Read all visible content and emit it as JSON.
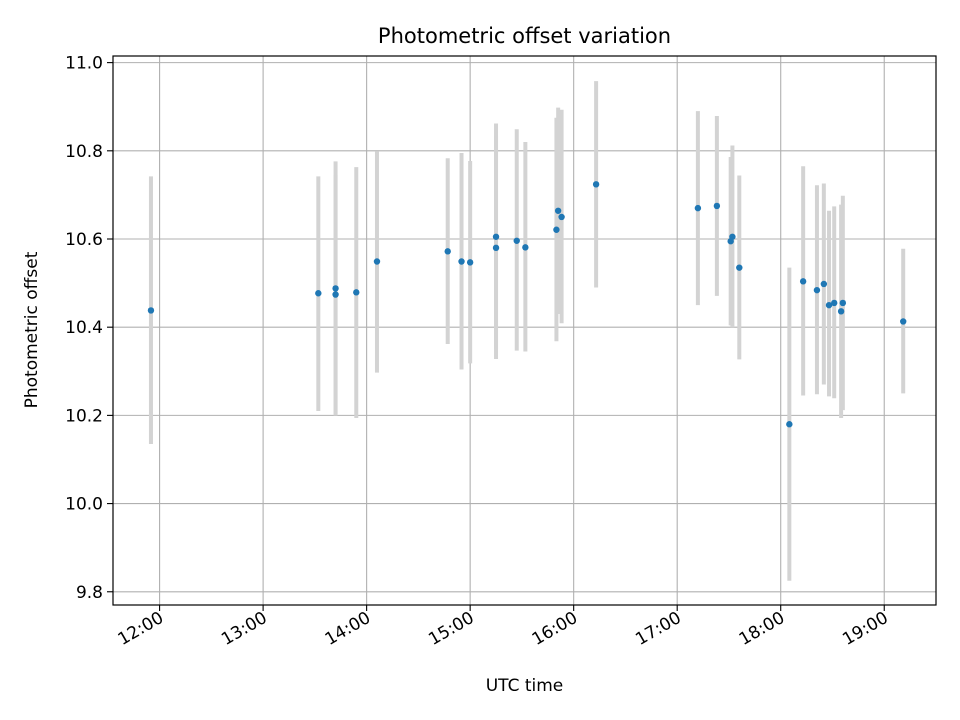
{
  "chart_data": {
    "type": "scatter",
    "title": "Photometric offset variation",
    "xlabel": "UTC time",
    "ylabel": "Photometric offset",
    "x_ticks": [
      "12:00",
      "13:00",
      "14:00",
      "15:00",
      "16:00",
      "17:00",
      "18:00",
      "19:00"
    ],
    "y_ticks": [
      "9.8",
      "10.0",
      "10.2",
      "10.4",
      "10.6",
      "10.8",
      "11.0"
    ],
    "xlim": [
      "11:33",
      "19:30"
    ],
    "ylim": [
      9.77,
      11.015
    ],
    "grid": true,
    "point_color": "#1f77b4",
    "errorbar_color": "#d3d3d3",
    "points": [
      {
        "time": "11:55",
        "y": 10.438,
        "err_low": 10.135,
        "err_high": 10.742
      },
      {
        "time": "13:32",
        "y": 10.477,
        "err_low": 10.21,
        "err_high": 10.742
      },
      {
        "time": "13:42",
        "y": 10.488,
        "err_low": 10.2,
        "err_high": 10.776
      },
      {
        "time": "13:42",
        "y": 10.474,
        "err_low": 10.203,
        "err_high": 10.745
      },
      {
        "time": "13:54",
        "y": 10.479,
        "err_low": 10.194,
        "err_high": 10.763
      },
      {
        "time": "14:06",
        "y": 10.549,
        "err_low": 10.297,
        "err_high": 10.799
      },
      {
        "time": "14:47",
        "y": 10.572,
        "err_low": 10.362,
        "err_high": 10.783
      },
      {
        "time": "14:55",
        "y": 10.549,
        "err_low": 10.304,
        "err_high": 10.795
      },
      {
        "time": "15:00",
        "y": 10.547,
        "err_low": 10.318,
        "err_high": 10.777
      },
      {
        "time": "15:15",
        "y": 10.605,
        "err_low": 10.35,
        "err_high": 10.862
      },
      {
        "time": "15:15",
        "y": 10.58,
        "err_low": 10.328,
        "err_high": 10.833
      },
      {
        "time": "15:27",
        "y": 10.596,
        "err_low": 10.347,
        "err_high": 10.849
      },
      {
        "time": "15:32",
        "y": 10.581,
        "err_low": 10.345,
        "err_high": 10.82
      },
      {
        "time": "15:50",
        "y": 10.621,
        "err_low": 10.368,
        "err_high": 10.875
      },
      {
        "time": "15:51",
        "y": 10.664,
        "err_low": 10.43,
        "err_high": 10.898
      },
      {
        "time": "15:53",
        "y": 10.65,
        "err_low": 10.409,
        "err_high": 10.893
      },
      {
        "time": "16:13",
        "y": 10.724,
        "err_low": 10.49,
        "err_high": 10.958
      },
      {
        "time": "17:12",
        "y": 10.67,
        "err_low": 10.45,
        "err_high": 10.89
      },
      {
        "time": "17:23",
        "y": 10.675,
        "err_low": 10.471,
        "err_high": 10.879
      },
      {
        "time": "17:32",
        "y": 10.605,
        "err_low": 10.4,
        "err_high": 10.812
      },
      {
        "time": "17:31",
        "y": 10.595,
        "err_low": 10.404,
        "err_high": 10.786
      },
      {
        "time": "17:36",
        "y": 10.535,
        "err_low": 10.327,
        "err_high": 10.744
      },
      {
        "time": "18:05",
        "y": 10.18,
        "err_low": 9.825,
        "err_high": 10.535
      },
      {
        "time": "18:13",
        "y": 10.504,
        "err_low": 10.245,
        "err_high": 10.765
      },
      {
        "time": "18:21",
        "y": 10.484,
        "err_low": 10.248,
        "err_high": 10.722
      },
      {
        "time": "18:25",
        "y": 10.498,
        "err_low": 10.27,
        "err_high": 10.726
      },
      {
        "time": "18:28",
        "y": 10.45,
        "err_low": 10.243,
        "err_high": 10.664
      },
      {
        "time": "18:31",
        "y": 10.455,
        "err_low": 10.239,
        "err_high": 10.674
      },
      {
        "time": "18:35",
        "y": 10.436,
        "err_low": 10.194,
        "err_high": 10.678
      },
      {
        "time": "18:36",
        "y": 10.455,
        "err_low": 10.212,
        "err_high": 10.698
      },
      {
        "time": "19:11",
        "y": 10.413,
        "err_low": 10.25,
        "err_high": 10.578
      }
    ]
  }
}
